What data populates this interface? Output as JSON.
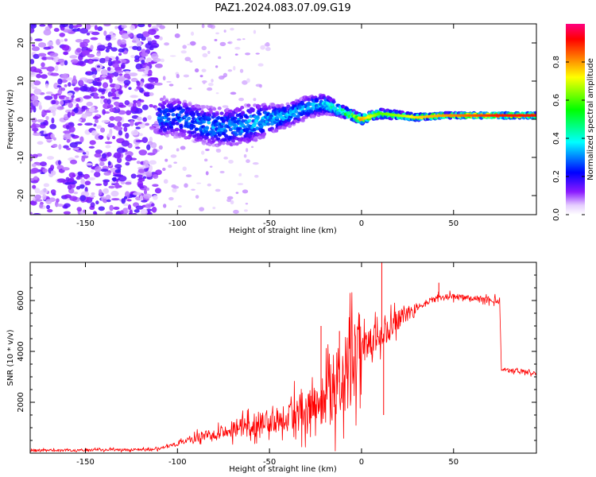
{
  "title": "PAZ1.2024.083.07.09.G19",
  "chart_data": [
    {
      "type": "heatmap",
      "xlabel": "Height of straight line (km)",
      "ylabel": "Frequency (Hz)",
      "xlim": [
        -180,
        95
      ],
      "ylim": [
        -25,
        25
      ],
      "xticks": [
        -150,
        -100,
        -50,
        0,
        50
      ],
      "yticks": [
        -20,
        -10,
        0,
        10,
        20
      ],
      "colorbar": {
        "label": "Normalized spectral amplitude",
        "range": [
          0.0,
          1.0
        ],
        "ticks": [
          0.0,
          0.2,
          0.4,
          0.6,
          0.8
        ],
        "colors": [
          "#ffffff",
          "#7f00ff",
          "#0000ff",
          "#00ffff",
          "#00ff00",
          "#ffff00",
          "#ff8000",
          "#ff0000",
          "#ff0080"
        ]
      },
      "noise_region": {
        "x": [
          -180,
          -110
        ],
        "y": [
          -25,
          25
        ],
        "amplitude": 0.15
      },
      "ridge": [
        {
          "x": -110,
          "y": 0.5,
          "spread": 5,
          "amp": 0.3
        },
        {
          "x": -100,
          "y": 0.5,
          "spread": 5,
          "amp": 0.3
        },
        {
          "x": -90,
          "y": -1.0,
          "spread": 5,
          "amp": 0.32
        },
        {
          "x": -80,
          "y": -2.0,
          "spread": 5,
          "amp": 0.33
        },
        {
          "x": -70,
          "y": -2.0,
          "spread": 5,
          "amp": 0.33
        },
        {
          "x": -60,
          "y": -1.0,
          "spread": 5,
          "amp": 0.35
        },
        {
          "x": -50,
          "y": 0.0,
          "spread": 4,
          "amp": 0.35
        },
        {
          "x": -40,
          "y": 1.0,
          "spread": 3,
          "amp": 0.35
        },
        {
          "x": -30,
          "y": 3.0,
          "spread": 3,
          "amp": 0.35
        },
        {
          "x": -20,
          "y": 4.0,
          "spread": 2.5,
          "amp": 0.4
        },
        {
          "x": -10,
          "y": 2.0,
          "spread": 1.5,
          "amp": 0.55
        },
        {
          "x": 0,
          "y": 0.0,
          "spread": 1.2,
          "amp": 0.8
        },
        {
          "x": 10,
          "y": 1.5,
          "spread": 1.2,
          "amp": 0.6
        },
        {
          "x": 20,
          "y": 1.0,
          "spread": 1.0,
          "amp": 0.65
        },
        {
          "x": 30,
          "y": 0.5,
          "spread": 0.8,
          "amp": 0.75
        },
        {
          "x": 45,
          "y": 1.0,
          "spread": 0.7,
          "amp": 0.8
        },
        {
          "x": 60,
          "y": 1.0,
          "spread": 0.7,
          "amp": 0.85
        },
        {
          "x": 75,
          "y": 1.0,
          "spread": 0.7,
          "amp": 0.9
        },
        {
          "x": 95,
          "y": 1.0,
          "spread": 0.7,
          "amp": 0.9
        }
      ]
    },
    {
      "type": "line",
      "xlabel": "Height of straight line (km)",
      "ylabel": "SNR (10 * v/v)",
      "xlim": [
        -180,
        95
      ],
      "ylim": [
        0,
        7500
      ],
      "xticks": [
        -150,
        -100,
        -50,
        0,
        50
      ],
      "yticks": [
        2000,
        4000,
        6000
      ],
      "color": "#ff0000",
      "x": [
        -180,
        -110,
        -100,
        -80,
        -60,
        -40,
        -30,
        -20,
        -10,
        0,
        8,
        12,
        20,
        30,
        40,
        50,
        60,
        75,
        76,
        95
      ],
      "values": [
        100,
        150,
        400,
        800,
        1100,
        1500,
        1900,
        2300,
        2900,
        3900,
        4500,
        4700,
        5200,
        5700,
        6100,
        6150,
        6100,
        6000,
        3300,
        3150
      ],
      "spikes": [
        {
          "x": 11,
          "y": 7500
        },
        {
          "x": 12,
          "y": 1500
        },
        {
          "x": 42,
          "y": 6700
        },
        {
          "x": -12,
          "y": 4800
        },
        {
          "x": -22,
          "y": 5000
        }
      ]
    }
  ]
}
